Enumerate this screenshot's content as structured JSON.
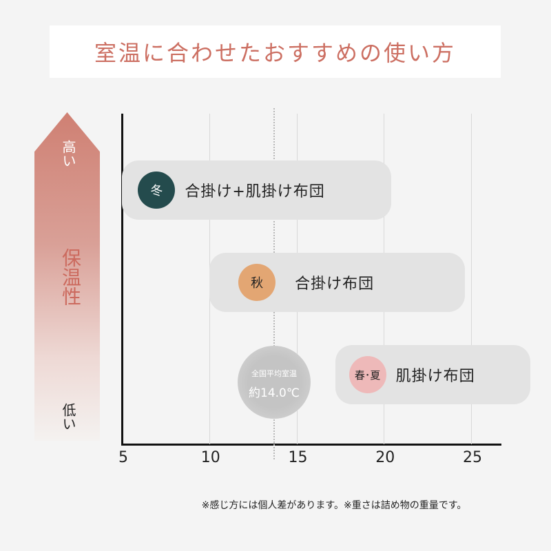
{
  "title": "室温に合わせたおすすめの使い方",
  "side_axis": {
    "label": "保温性",
    "high": "高い",
    "low": "低い"
  },
  "chart_data": {
    "type": "range-bar",
    "x_ticks": [
      5,
      10,
      15,
      20,
      25
    ],
    "xlim": [
      5,
      26.7
    ],
    "bars": [
      {
        "season": "冬",
        "label": "合掛け+肌掛け布団",
        "range": [
          6,
          19.5
        ],
        "color": "#244b4d",
        "text_color": "#ffffff",
        "y_level": "high"
      },
      {
        "season": "秋",
        "label": "合掛け布団",
        "range": [
          11,
          23
        ],
        "color": "#e3a673",
        "text_color": "#222222",
        "y_level": "mid"
      },
      {
        "season": "春･夏",
        "label": "肌掛け布団",
        "range": [
          18.2,
          27.6
        ],
        "color": "#eeb9b9",
        "text_color": "#222222",
        "y_level": "low"
      }
    ],
    "average": {
      "value": 14.0,
      "line_1": "全国平均室温",
      "line_2": "約14.0℃"
    }
  },
  "note": "※感じ方には個人差があります。※重さは詰め物の重量です。"
}
